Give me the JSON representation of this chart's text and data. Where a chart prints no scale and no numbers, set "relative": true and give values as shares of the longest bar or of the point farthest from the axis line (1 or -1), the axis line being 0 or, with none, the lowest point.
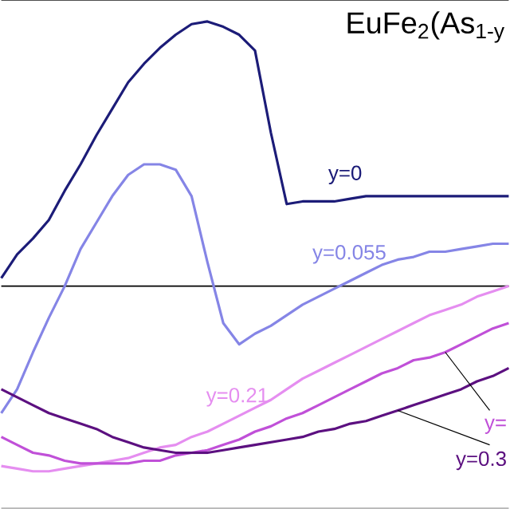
{
  "chart_data": {
    "type": "line",
    "title": "EuFe$_{2}$(As$_{1-y}$",
    "relative": true,
    "categories": [
      null,
      null,
      null,
      null,
      null,
      null,
      null,
      null,
      null,
      null,
      null,
      null,
      null,
      null,
      null,
      null,
      null,
      null,
      null,
      null,
      null,
      null,
      null,
      null,
      null,
      null,
      null,
      null,
      null,
      null,
      null,
      null,
      null
    ],
    "series": [
      {
        "name": "y=0",
        "color": "#1c1c78",
        "values": [
          0.03,
          0.12,
          0.18,
          0.25,
          0.36,
          0.46,
          0.57,
          0.67,
          0.77,
          0.84,
          0.9,
          0.95,
          0.99,
          1.0,
          0.98,
          0.95,
          0.89,
          0.58,
          0.31,
          0.32,
          0.32,
          0.32,
          0.33,
          0.34,
          0.34,
          0.34,
          0.34,
          0.34,
          0.34,
          0.34,
          0.34,
          0.34,
          0.34
        ]
      },
      {
        "name": "y=0.055",
        "color": "#8585e6",
        "values": [
          -0.48,
          -0.39,
          -0.25,
          -0.12,
          0.0,
          0.14,
          0.24,
          0.34,
          0.42,
          0.46,
          0.46,
          0.44,
          0.34,
          0.09,
          -0.14,
          -0.22,
          -0.18,
          -0.15,
          -0.11,
          -0.07,
          -0.04,
          -0.01,
          0.02,
          0.05,
          0.08,
          0.1,
          0.11,
          0.13,
          0.13,
          0.14,
          0.15,
          0.16,
          0.16
        ]
      },
      {
        "name": "y=0.21",
        "color": "#e58ef0",
        "values": [
          -0.68,
          -0.69,
          -0.7,
          -0.7,
          -0.69,
          -0.68,
          -0.67,
          -0.66,
          -0.65,
          -0.63,
          -0.61,
          -0.6,
          -0.57,
          -0.55,
          -0.52,
          -0.49,
          -0.46,
          -0.43,
          -0.39,
          -0.35,
          -0.32,
          -0.29,
          -0.26,
          -0.23,
          -0.2,
          -0.17,
          -0.14,
          -0.11,
          -0.09,
          -0.07,
          -0.04,
          -0.02,
          0.0
        ]
      },
      {
        "name": "y=",
        "color": "#c050d8",
        "values": [
          -0.57,
          -0.6,
          -0.63,
          -0.64,
          -0.66,
          -0.67,
          -0.67,
          -0.67,
          -0.67,
          -0.66,
          -0.66,
          -0.64,
          -0.63,
          -0.62,
          -0.6,
          -0.58,
          -0.55,
          -0.53,
          -0.5,
          -0.48,
          -0.45,
          -0.42,
          -0.39,
          -0.36,
          -0.33,
          -0.31,
          -0.28,
          -0.27,
          -0.25,
          -0.22,
          -0.19,
          -0.16,
          -0.14
        ]
      },
      {
        "name": "y=0.3",
        "color": "#5c1080",
        "values": [
          -0.39,
          -0.42,
          -0.45,
          -0.48,
          -0.5,
          -0.52,
          -0.54,
          -0.57,
          -0.59,
          -0.61,
          -0.62,
          -0.63,
          -0.63,
          -0.63,
          -0.62,
          -0.61,
          -0.6,
          -0.59,
          -0.58,
          -0.57,
          -0.55,
          -0.54,
          -0.52,
          -0.51,
          -0.49,
          -0.47,
          -0.45,
          -0.43,
          -0.41,
          -0.39,
          -0.36,
          -0.34,
          -0.31
        ]
      }
    ]
  }
}
